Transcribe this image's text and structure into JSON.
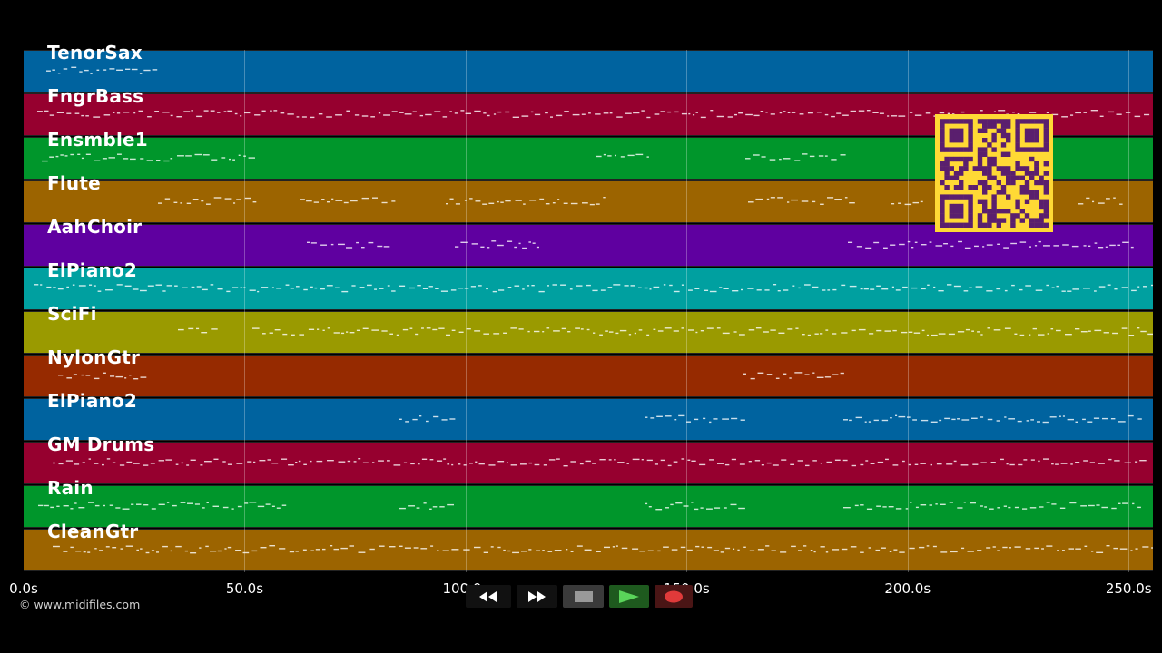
{
  "tracks": [
    {
      "name": "TenorSax",
      "color": "#00639f"
    },
    {
      "name": "FngrBass",
      "color": "#96002f"
    },
    {
      "name": "Ensmble1",
      "color": "#00962b"
    },
    {
      "name": "Flute",
      "color": "#9c6400"
    },
    {
      "name": "AahChoir",
      "color": "#5f00a0"
    },
    {
      "name": "ElPiano2",
      "color": "#00a0a0"
    },
    {
      "name": "SciFi",
      "color": "#9a9a00"
    },
    {
      "name": "NylonGtr",
      "color": "#962a00"
    },
    {
      "name": "ElPiano2",
      "color": "#00639f"
    },
    {
      "name": "GM Drums",
      "color": "#96002f"
    },
    {
      "name": "Rain",
      "color": "#00962b"
    },
    {
      "name": "CleanGtr",
      "color": "#9c6400"
    }
  ],
  "timeline": {
    "ticks": [
      "0.0s",
      "50.0s",
      "100.0s",
      "150.0s",
      "200.0s",
      "250.0s"
    ],
    "tick_values": [
      0,
      50,
      100,
      150,
      200,
      250
    ],
    "max_seconds": 255.5
  },
  "copyright": "© www.midifiles.com",
  "controls": [
    {
      "icon": "rewind-icon",
      "glyph": "◀◀"
    },
    {
      "icon": "fast-forward-icon",
      "glyph": "▶▶"
    },
    {
      "icon": "stop-icon",
      "glyph": "■"
    },
    {
      "icon": "play-icon",
      "glyph": "▶"
    },
    {
      "icon": "record-icon",
      "glyph": "●"
    }
  ],
  "qr_colors": {
    "fg": "#5a1f6e",
    "bg": "#ffd935"
  }
}
